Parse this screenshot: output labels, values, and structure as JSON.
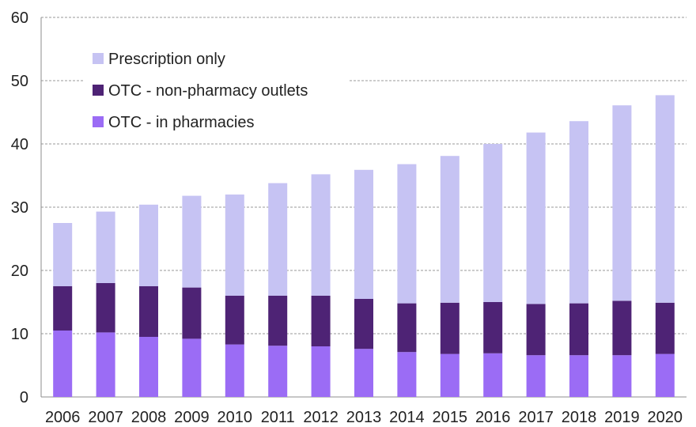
{
  "chart_data": {
    "type": "bar",
    "stacked": true,
    "categories": [
      "2006",
      "2007",
      "2008",
      "2009",
      "2010",
      "2011",
      "2012",
      "2013",
      "2014",
      "2015",
      "2016",
      "2017",
      "2018",
      "2019",
      "2020"
    ],
    "series": [
      {
        "name": "OTC - in pharmacies",
        "color": "#9b6cf5",
        "values": [
          10.5,
          10.2,
          9.5,
          9.2,
          8.3,
          8.1,
          8.0,
          7.6,
          7.1,
          6.8,
          6.9,
          6.6,
          6.6,
          6.6,
          6.8
        ]
      },
      {
        "name": "OTC - non-pharmacy outlets",
        "color": "#4e2375",
        "values": [
          7.0,
          7.8,
          8.0,
          8.1,
          7.7,
          7.9,
          8.0,
          7.9,
          7.7,
          8.1,
          8.1,
          8.1,
          8.2,
          8.6,
          8.1
        ]
      },
      {
        "name": "Prescription only",
        "color": "#c6c3f3",
        "values": [
          10.0,
          11.3,
          12.9,
          14.5,
          16.0,
          17.8,
          19.2,
          20.4,
          22.0,
          23.2,
          25.0,
          27.1,
          28.8,
          30.9,
          32.8
        ]
      }
    ],
    "legend_order": [
      "Prescription only",
      "OTC - non-pharmacy outlets",
      "OTC - in pharmacies"
    ],
    "legend_position": "top-left",
    "ylim": [
      0,
      60
    ],
    "yticks": [
      "0",
      "10",
      "20",
      "30",
      "40",
      "50",
      "60"
    ],
    "grid": true,
    "title": "",
    "xlabel": "",
    "ylabel": ""
  }
}
